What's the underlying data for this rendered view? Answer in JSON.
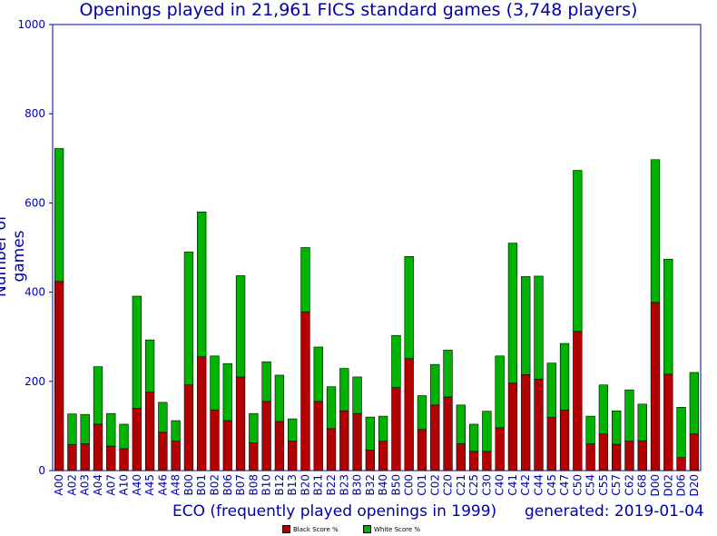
{
  "chart_data": {
    "type": "bar",
    "stacked": true,
    "title": "Openings played in 21,961 FICS standard games (3,748 players)",
    "xlabel": "ECO (frequently played openings in 1999)",
    "ylabel": "Number of games",
    "footer": "generated: 2019-01-04",
    "ylim": [
      0,
      1000
    ],
    "yticks": [
      0,
      200,
      400,
      600,
      800,
      1000
    ],
    "grid": false,
    "legend_position": "bottom-center",
    "categories": [
      "A00",
      "A02",
      "A03",
      "A04",
      "A07",
      "A10",
      "A40",
      "A45",
      "A46",
      "A48",
      "B00",
      "B01",
      "B02",
      "B06",
      "B07",
      "B08",
      "B10",
      "B12",
      "B13",
      "B20",
      "B21",
      "B22",
      "B23",
      "B30",
      "B32",
      "B40",
      "B50",
      "C00",
      "C01",
      "C02",
      "C20",
      "C21",
      "C25",
      "C30",
      "C40",
      "C41",
      "C42",
      "C44",
      "C45",
      "C47",
      "C50",
      "C54",
      "C55",
      "C57",
      "C62",
      "C68",
      "D00",
      "D02",
      "D06",
      "D20"
    ],
    "series": [
      {
        "name": "Black Score %",
        "color": "#b30000",
        "values": [
          424,
          58,
          60,
          104,
          55,
          49,
          140,
          176,
          86,
          66,
          192,
          255,
          136,
          112,
          210,
          62,
          155,
          110,
          66,
          356,
          155,
          94,
          134,
          128,
          46,
          66,
          186,
          251,
          92,
          147,
          165,
          60,
          43,
          43,
          96,
          196,
          215,
          205,
          119,
          136,
          312,
          60,
          82,
          59,
          66,
          67,
          377,
          216,
          29,
          82
        ]
      },
      {
        "name": "White Score %",
        "color": "#00b300",
        "values": [
          298,
          69,
          66,
          129,
          73,
          55,
          251,
          117,
          67,
          46,
          298,
          325,
          121,
          128,
          227,
          66,
          89,
          104,
          50,
          144,
          122,
          94,
          95,
          82,
          74,
          56,
          117,
          229,
          76,
          91,
          105,
          87,
          61,
          90,
          161,
          314,
          220,
          231,
          122,
          149,
          361,
          62,
          110,
          75,
          115,
          82,
          320,
          258,
          113,
          138
        ]
      }
    ]
  }
}
